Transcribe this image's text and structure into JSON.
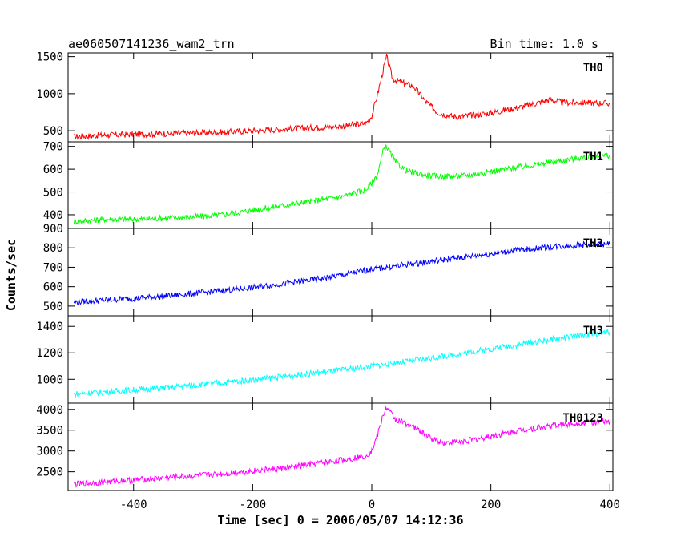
{
  "header": {
    "title": "ae060507141236_wam2_trn",
    "bin_time": "Bin time: 1.0 s"
  },
  "chart_data": {
    "type": "line",
    "xlabel": "Time [sec] 0 = 2006/05/07 14:12:36",
    "ylabel": "Counts/sec",
    "xlim": [
      -510,
      405
    ],
    "x_ticks": [
      -400,
      -200,
      0,
      200,
      400
    ],
    "grid": false,
    "panels": [
      {
        "name": "TH0",
        "color": "#ff0000",
        "ylim": [
          350,
          1550
        ],
        "y_ticks": [
          500,
          1000,
          1500
        ],
        "series": [
          {
            "name": "TH0",
            "x": [
              -500,
              -450,
              -400,
              -350,
              -300,
              -250,
              -200,
              -150,
              -100,
              -50,
              -10,
              0,
              10,
              20,
              25,
              35,
              50,
              70,
              90,
              110,
              130,
              150,
              200,
              250,
              300,
              320,
              350,
              400
            ],
            "y": [
              420,
              440,
              450,
              460,
              470,
              480,
              500,
              520,
              540,
              560,
              600,
              700,
              1000,
              1350,
              1500,
              1200,
              1150,
              1100,
              900,
              750,
              700,
              690,
              740,
              820,
              920,
              880,
              880,
              870
            ]
          }
        ]
      },
      {
        "name": "TH1",
        "color": "#00ff00",
        "ylim": [
          340,
          720
        ],
        "y_ticks": [
          400,
          500,
          600,
          700
        ],
        "series": [
          {
            "name": "TH1",
            "x": [
              -500,
              -450,
              -400,
              -350,
              -300,
              -250,
              -200,
              -150,
              -100,
              -50,
              -10,
              0,
              10,
              20,
              25,
              40,
              60,
              80,
              100,
              130,
              150,
              200,
              250,
              300,
              350,
              400
            ],
            "y": [
              370,
              380,
              380,
              385,
              390,
              400,
              420,
              440,
              460,
              480,
              510,
              540,
              580,
              690,
              700,
              630,
              590,
              580,
              570,
              570,
              570,
              590,
              610,
              630,
              650,
              660
            ]
          }
        ]
      },
      {
        "name": "TH2",
        "color": "#0000ff",
        "ylim": [
          450,
          900
        ],
        "y_ticks": [
          500,
          600,
          700,
          800,
          900
        ],
        "series": [
          {
            "name": "TH2",
            "x": [
              -500,
              -450,
              -400,
              -350,
              -300,
              -250,
              -200,
              -150,
              -100,
              -50,
              0,
              50,
              100,
              150,
              200,
              250,
              300,
              350,
              400
            ],
            "y": [
              520,
              530,
              540,
              550,
              565,
              580,
              595,
              615,
              635,
              660,
              690,
              710,
              730,
              750,
              770,
              790,
              805,
              815,
              820
            ]
          }
        ]
      },
      {
        "name": "TH3",
        "color": "#00ffff",
        "ylim": [
          820,
          1480
        ],
        "y_ticks": [
          1000,
          1200,
          1400
        ],
        "series": [
          {
            "name": "TH3",
            "x": [
              -500,
              -450,
              -400,
              -350,
              -300,
              -250,
              -200,
              -150,
              -100,
              -50,
              0,
              50,
              100,
              150,
              200,
              250,
              300,
              350,
              400
            ],
            "y": [
              890,
              905,
              920,
              935,
              955,
              975,
              995,
              1020,
              1045,
              1070,
              1100,
              1130,
              1160,
              1195,
              1230,
              1265,
              1300,
              1330,
              1360
            ]
          }
        ]
      },
      {
        "name": "TH0123",
        "color": "#ff00ff",
        "ylim": [
          2050,
          4150
        ],
        "y_ticks": [
          2500,
          3000,
          3500,
          4000
        ],
        "series": [
          {
            "name": "TH0123",
            "x": [
              -500,
              -450,
              -400,
              -350,
              -300,
              -250,
              -200,
              -150,
              -100,
              -50,
              -10,
              0,
              10,
              20,
              25,
              40,
              60,
              80,
              100,
              120,
              150,
              200,
              250,
              300,
              350,
              380,
              400
            ],
            "y": [
              2200,
              2250,
              2300,
              2350,
              2400,
              2450,
              2520,
              2580,
              2680,
              2780,
              2880,
              3000,
              3400,
              3900,
              4050,
              3750,
              3650,
              3500,
              3300,
              3200,
              3220,
              3350,
              3500,
              3600,
              3680,
              3700,
              3700
            ]
          }
        ]
      }
    ]
  }
}
